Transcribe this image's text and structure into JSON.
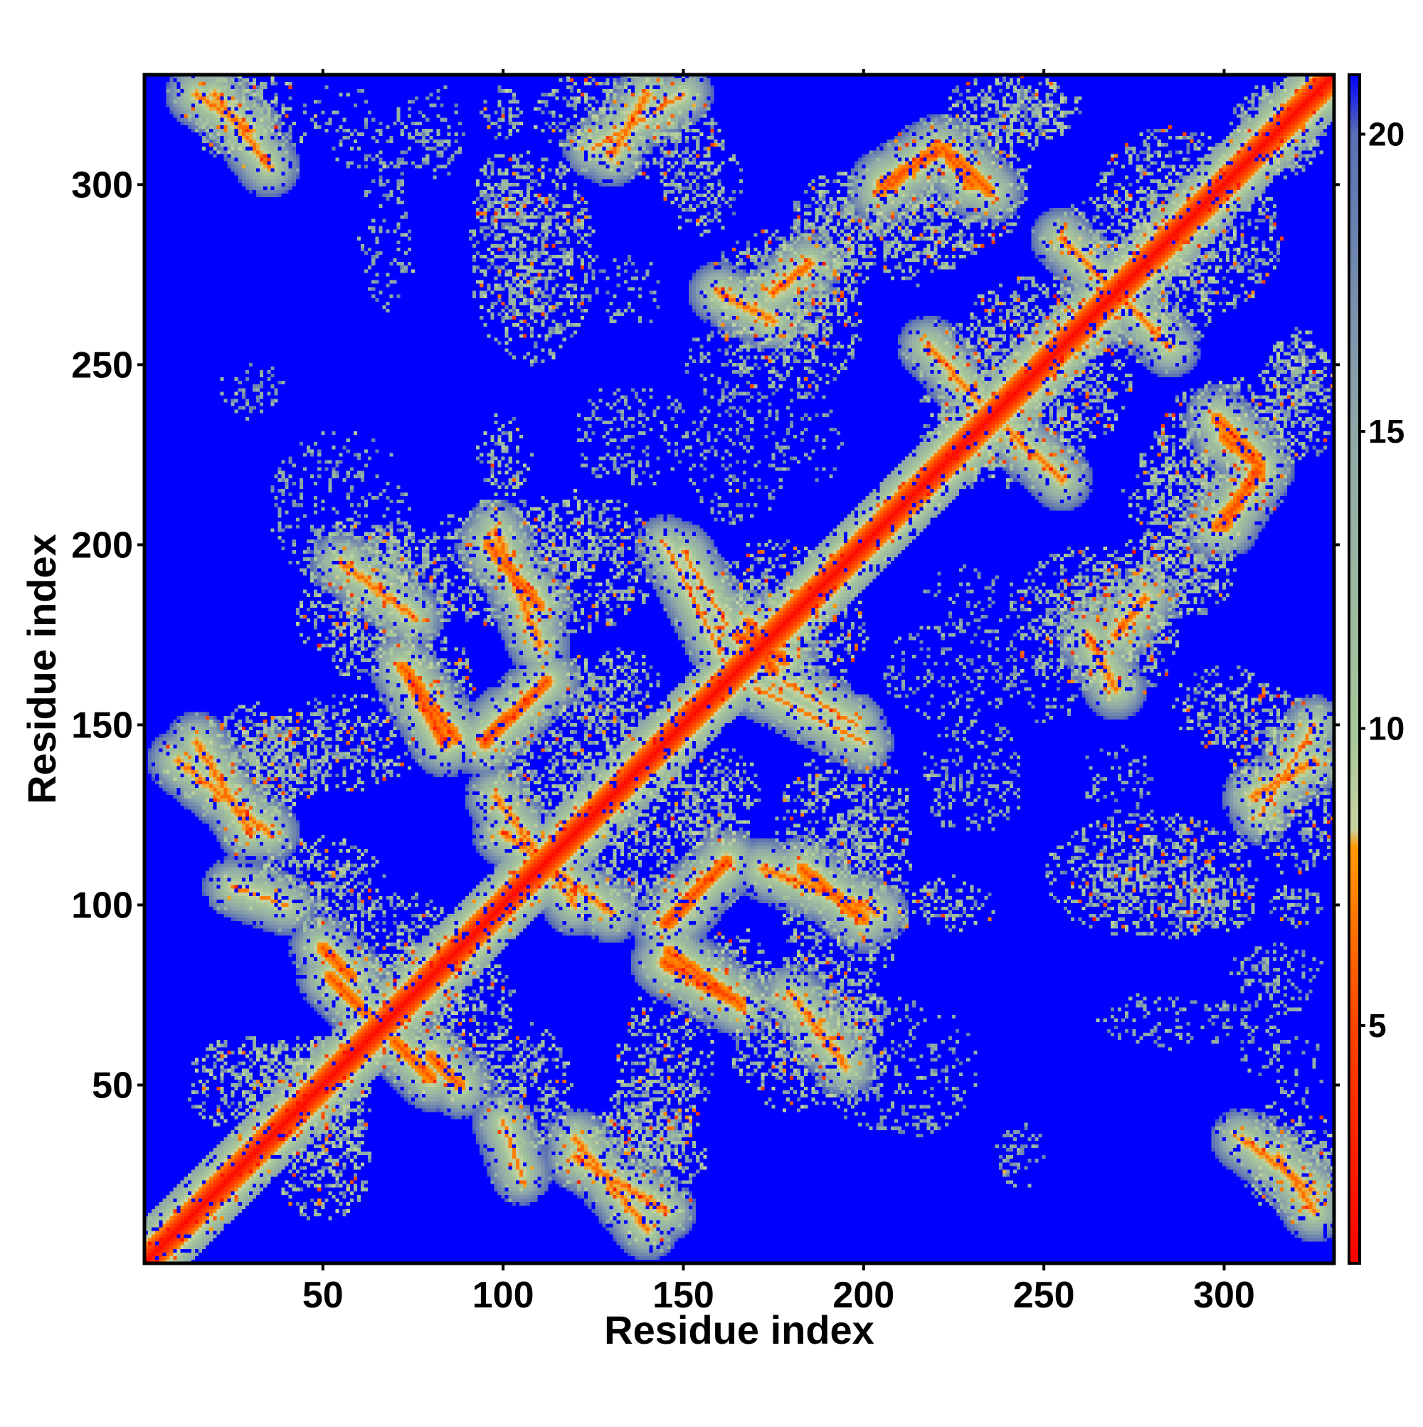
{
  "chart_data": {
    "type": "heatmap",
    "title": "",
    "xlabel": "Residue index",
    "ylabel": "Residue index",
    "xlim": [
      1,
      330
    ],
    "ylim": [
      1,
      330
    ],
    "x_ticks": [
      50,
      100,
      150,
      200,
      250,
      300
    ],
    "y_ticks": [
      50,
      100,
      150,
      200,
      250,
      300
    ],
    "colorbar": {
      "range": [
        1,
        21
      ],
      "ticks": [
        5,
        10,
        15,
        20
      ],
      "stops": [
        {
          "value": 1,
          "color": "#ff0000"
        },
        {
          "value": 5,
          "color": "#ff4400"
        },
        {
          "value": 8,
          "color": "#ff9900"
        },
        {
          "value": 8.3,
          "color": "#c8d3a0"
        },
        {
          "value": 10,
          "color": "#a6c79a"
        },
        {
          "value": 15,
          "color": "#8fa8a8"
        },
        {
          "value": 20,
          "color": "#5a6fb4"
        },
        {
          "value": 21,
          "color": "#0000ff"
        }
      ]
    },
    "background_color": "#0000ff",
    "diagonal": {
      "value": 1.5,
      "halfwidth": 4
    },
    "contact_bands": [
      {
        "x1": 52,
        "y1": 80,
        "x2": 62,
        "y2": 70,
        "value": 5.5
      },
      {
        "x1": 80,
        "y1": 58,
        "x2": 88,
        "y2": 50,
        "value": 5.5
      },
      {
        "x1": 84,
        "y1": 145,
        "x2": 74,
        "y2": 163,
        "value": 5.0
      },
      {
        "x1": 95,
        "y1": 145,
        "x2": 112,
        "y2": 162,
        "value": 5.0
      },
      {
        "x1": 96,
        "y1": 200,
        "x2": 110,
        "y2": 183,
        "value": 5.5
      },
      {
        "x1": 100,
        "y1": 120,
        "x2": 130,
        "y2": 98,
        "value": 6.5
      },
      {
        "x1": 146,
        "y1": 95,
        "x2": 158,
        "y2": 108,
        "value": 5.0
      },
      {
        "x1": 146,
        "y1": 87,
        "x2": 166,
        "y2": 72,
        "value": 5.5
      },
      {
        "x1": 150,
        "y1": 198,
        "x2": 162,
        "y2": 178,
        "value": 7.0
      },
      {
        "x1": 172,
        "y1": 110,
        "x2": 204,
        "y2": 98,
        "value": 6.5
      },
      {
        "x1": 170,
        "y1": 160,
        "x2": 200,
        "y2": 145,
        "value": 7.0
      },
      {
        "x1": 205,
        "y1": 300,
        "x2": 222,
        "y2": 310,
        "value": 5.5
      },
      {
        "x1": 225,
        "y1": 308,
        "x2": 235,
        "y2": 298,
        "value": 5.5
      },
      {
        "x1": 240,
        "y1": 232,
        "x2": 255,
        "y2": 218,
        "value": 6.5
      },
      {
        "x1": 298,
        "y1": 205,
        "x2": 310,
        "y2": 220,
        "value": 5.5
      },
      {
        "x1": 300,
        "y1": 230,
        "x2": 310,
        "y2": 222,
        "value": 5.5
      },
      {
        "x1": 270,
        "y1": 175,
        "x2": 278,
        "y2": 185,
        "value": 6.0
      },
      {
        "x1": 305,
        "y1": 35,
        "x2": 325,
        "y2": 20,
        "value": 6.5
      },
      {
        "x1": 308,
        "y1": 130,
        "x2": 325,
        "y2": 140,
        "value": 6.5
      },
      {
        "x1": 10,
        "y1": 140,
        "x2": 35,
        "y2": 120,
        "value": 6.5
      },
      {
        "x1": 15,
        "y1": 325,
        "x2": 30,
        "y2": 315,
        "value": 6.5
      },
      {
        "x1": 120,
        "y1": 30,
        "x2": 145,
        "y2": 15,
        "value": 6.5
      },
      {
        "x1": 165,
        "y1": 175,
        "x2": 178,
        "y2": 168,
        "value": 5.0
      },
      {
        "x1": 125,
        "y1": 310,
        "x2": 150,
        "y2": 325,
        "value": 7.0
      },
      {
        "x1": 160,
        "y1": 270,
        "x2": 175,
        "y2": 262,
        "value": 6.5
      },
      {
        "x1": 255,
        "y1": 285,
        "x2": 268,
        "y2": 272,
        "value": 6.5
      },
      {
        "x1": 55,
        "y1": 195,
        "x2": 75,
        "y2": 180,
        "value": 6.5
      },
      {
        "x1": 25,
        "y1": 105,
        "x2": 40,
        "y2": 100,
        "value": 7.0
      }
    ],
    "contact_blobs": [
      {
        "x": 25,
        "y": 320,
        "rx": 14,
        "ry": 10
      },
      {
        "x": 100,
        "y": 320,
        "rx": 6,
        "ry": 8
      },
      {
        "x": 140,
        "y": 315,
        "rx": 20,
        "ry": 14
      },
      {
        "x": 108,
        "y": 280,
        "rx": 18,
        "ry": 30
      },
      {
        "x": 155,
        "y": 300,
        "rx": 12,
        "ry": 14
      },
      {
        "x": 175,
        "y": 270,
        "rx": 18,
        "ry": 18
      },
      {
        "x": 195,
        "y": 290,
        "rx": 16,
        "ry": 14
      },
      {
        "x": 225,
        "y": 300,
        "rx": 22,
        "ry": 20
      },
      {
        "x": 250,
        "y": 320,
        "rx": 12,
        "ry": 8
      },
      {
        "x": 315,
        "y": 315,
        "rx": 14,
        "ry": 12
      },
      {
        "x": 270,
        "y": 280,
        "rx": 20,
        "ry": 18
      },
      {
        "x": 300,
        "y": 285,
        "rx": 16,
        "ry": 20
      },
      {
        "x": 245,
        "y": 245,
        "rx": 30,
        "ry": 22
      },
      {
        "x": 320,
        "y": 240,
        "rx": 12,
        "ry": 18
      },
      {
        "x": 290,
        "y": 215,
        "rx": 18,
        "ry": 16
      },
      {
        "x": 262,
        "y": 180,
        "rx": 22,
        "ry": 20
      },
      {
        "x": 230,
        "y": 230,
        "rx": 10,
        "ry": 14
      },
      {
        "x": 100,
        "y": 195,
        "rx": 22,
        "ry": 18
      },
      {
        "x": 60,
        "y": 185,
        "rx": 18,
        "ry": 22
      },
      {
        "x": 80,
        "y": 165,
        "rx": 14,
        "ry": 10
      },
      {
        "x": 30,
        "y": 140,
        "rx": 25,
        "ry": 14
      },
      {
        "x": 120,
        "y": 140,
        "rx": 22,
        "ry": 22
      },
      {
        "x": 175,
        "y": 180,
        "rx": 18,
        "ry": 22
      },
      {
        "x": 195,
        "y": 120,
        "rx": 20,
        "ry": 24
      },
      {
        "x": 160,
        "y": 130,
        "rx": 12,
        "ry": 14
      },
      {
        "x": 145,
        "y": 100,
        "rx": 10,
        "ry": 10
      },
      {
        "x": 70,
        "y": 80,
        "rx": 22,
        "ry": 24
      },
      {
        "x": 30,
        "y": 50,
        "rx": 18,
        "ry": 14
      },
      {
        "x": 50,
        "y": 45,
        "rx": 14,
        "ry": 18
      },
      {
        "x": 105,
        "y": 50,
        "rx": 14,
        "ry": 18
      },
      {
        "x": 145,
        "y": 55,
        "rx": 14,
        "ry": 22
      },
      {
        "x": 135,
        "y": 30,
        "rx": 22,
        "ry": 14
      },
      {
        "x": 185,
        "y": 70,
        "rx": 22,
        "ry": 16
      },
      {
        "x": 195,
        "y": 70,
        "rx": 10,
        "ry": 8
      },
      {
        "x": 318,
        "y": 30,
        "rx": 14,
        "ry": 16
      },
      {
        "x": 320,
        "y": 130,
        "rx": 14,
        "ry": 22
      },
      {
        "x": 295,
        "y": 100,
        "rx": 14,
        "ry": 8
      },
      {
        "x": 270,
        "y": 105,
        "rx": 10,
        "ry": 8
      },
      {
        "x": 225,
        "y": 100,
        "rx": 12,
        "ry": 8
      },
      {
        "x": 280,
        "y": 190,
        "rx": 14,
        "ry": 14
      }
    ],
    "speckle_regions": [
      {
        "x": 70,
        "y": 310,
        "rx": 18,
        "ry": 8
      },
      {
        "x": 165,
        "y": 225,
        "rx": 14,
        "ry": 20
      },
      {
        "x": 130,
        "y": 230,
        "rx": 10,
        "ry": 14
      },
      {
        "x": 30,
        "y": 240,
        "rx": 6,
        "ry": 6
      },
      {
        "x": 185,
        "y": 230,
        "rx": 10,
        "ry": 14
      },
      {
        "x": 70,
        "y": 60,
        "rx": 8,
        "ry": 6
      },
      {
        "x": 210,
        "y": 55,
        "rx": 22,
        "ry": 20
      },
      {
        "x": 245,
        "y": 30,
        "rx": 8,
        "ry": 10
      },
      {
        "x": 285,
        "y": 68,
        "rx": 20,
        "ry": 8
      },
      {
        "x": 315,
        "y": 80,
        "rx": 14,
        "ry": 10
      },
      {
        "x": 230,
        "y": 140,
        "rx": 14,
        "ry": 12
      },
      {
        "x": 320,
        "y": 55,
        "rx": 8,
        "ry": 10
      },
      {
        "x": 180,
        "y": 260,
        "rx": 10,
        "ry": 10
      },
      {
        "x": 270,
        "y": 135,
        "rx": 10,
        "ry": 10
      },
      {
        "x": 250,
        "y": 160,
        "rx": 10,
        "ry": 10
      }
    ],
    "isolated_points": [
      {
        "x": 122,
        "y": 267,
        "value": 5
      },
      {
        "x": 267,
        "y": 122,
        "value": 5
      }
    ]
  }
}
